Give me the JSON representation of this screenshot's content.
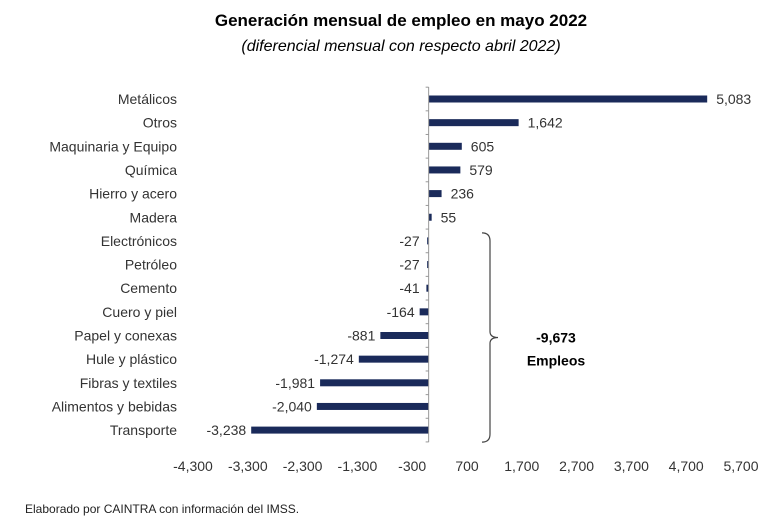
{
  "chart_data": {
    "type": "bar",
    "orientation": "horizontal",
    "title": "Generación mensual de empleo en mayo 2022",
    "subtitle": "(diferencial mensual con respecto abril 2022)",
    "categories": [
      "Metálicos",
      "Otros",
      "Maquinaria y Equipo",
      "Química",
      "Hierro y acero",
      "Madera",
      "Electrónicos",
      "Petróleo",
      "Cemento",
      "Cuero y piel",
      "Papel y conexas",
      "Hule y plástico",
      "Fibras y textiles",
      "Alimentos y bebidas",
      "Transporte"
    ],
    "values": [
      5083,
      1642,
      605,
      579,
      236,
      55,
      -27,
      -27,
      -41,
      -164,
      -881,
      -1274,
      -1981,
      -2040,
      -3238
    ],
    "value_labels": [
      "5,083",
      "1,642",
      "605",
      "579",
      "236",
      "55",
      "-27",
      "-27",
      "-41",
      "-164",
      "-881",
      "-1,274",
      "-1,981",
      "-2,040",
      "-3,238"
    ],
    "xlim": [
      -4300,
      5700
    ],
    "xticks": [
      -4300,
      -3300,
      -2300,
      -1300,
      -300,
      700,
      1700,
      2700,
      3700,
      4700,
      5700
    ],
    "xtick_labels": [
      "-4,300",
      "-3,300",
      "-2,300",
      "-1,300",
      "-300",
      "700",
      "1,700",
      "2,700",
      "3,700",
      "4,700",
      "5,700"
    ],
    "bar_color": "#1a2a5a",
    "grid": false,
    "annotation": {
      "value": "-9,673",
      "label": "Empleos",
      "brace_from": "Electrónicos",
      "brace_to": "Transporte"
    },
    "footer": "Elaborado por CAINTRA con información del IMSS."
  }
}
